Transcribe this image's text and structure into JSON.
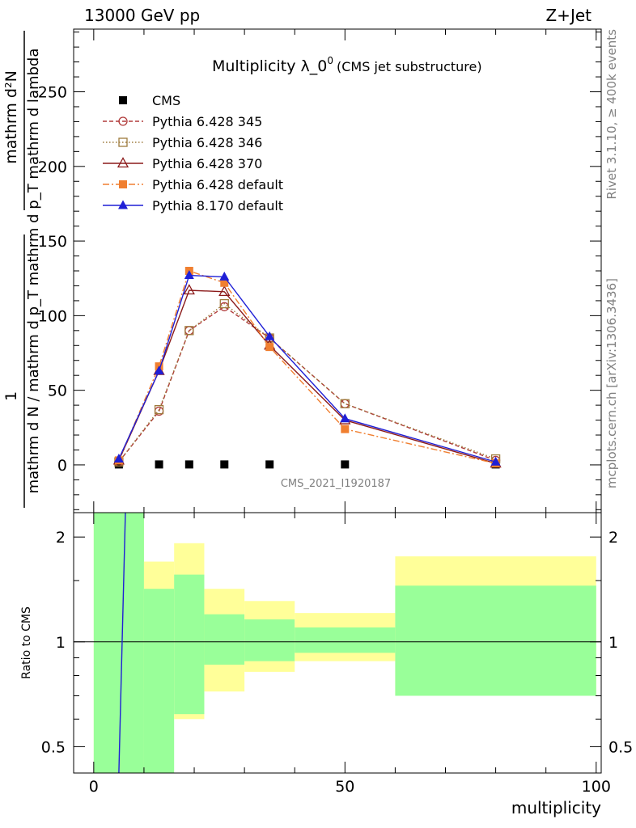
{
  "header": {
    "left": "13000 GeV pp",
    "right": "Z+Jet"
  },
  "side_labels": {
    "rivet": "Rivet 3.1.10, ≥ 400k events",
    "mcplots": "mcplots.cern.ch [arXiv:1306.3436]"
  },
  "chart_data": [
    {
      "type": "line",
      "title": "Multiplicity λ_0⁰",
      "title_main": "Multiplicity λ_0",
      "title_sup": "0",
      "subtitle": "(CMS jet substructure)",
      "analysis_label": "CMS_2021_I1920187",
      "xlabel": "multiplicity",
      "ylabel_numerator": "mathrm d²N",
      "ylabel_main": "mathrm d N / mathrm d p_T mathrm d p_T mathrm d lambda",
      "ylabel_one": "1",
      "xlim": [
        -4,
        101
      ],
      "ylim": [
        -32,
        292
      ],
      "yticks": [
        0,
        50,
        100,
        150,
        200,
        250
      ],
      "xticks": [
        0,
        50,
        100
      ],
      "legend_position": "top-left",
      "series": [
        {
          "name": "CMS",
          "color": "#000000",
          "marker": "square-filled",
          "line": "none",
          "x": [
            5,
            13,
            19,
            26,
            35,
            50,
            80
          ],
          "y": [
            0.3,
            0.3,
            0.3,
            0.3,
            0.3,
            0.3,
            0.3
          ]
        },
        {
          "name": "Pythia 6.428 345",
          "color": "#b03a3a",
          "marker": "circle-open",
          "line": "dashed",
          "x": [
            5,
            13,
            19,
            26,
            35,
            50,
            80
          ],
          "y": [
            2,
            36,
            90,
            106,
            85,
            41,
            3
          ]
        },
        {
          "name": "Pythia 6.428 346",
          "color": "#9e7b3d",
          "marker": "square-open",
          "line": "dotted",
          "x": [
            5,
            13,
            19,
            26,
            35,
            50,
            80
          ],
          "y": [
            2,
            37,
            90,
            108,
            85,
            41,
            4
          ]
        },
        {
          "name": "Pythia 6.428 370",
          "color": "#8b1a1a",
          "marker": "triangle-open",
          "line": "solid",
          "x": [
            5,
            13,
            19,
            26,
            35,
            50,
            80
          ],
          "y": [
            3,
            63,
            117,
            116,
            80,
            30,
            1
          ]
        },
        {
          "name": "Pythia 6.428 default",
          "color": "#f07f30",
          "marker": "square-filled",
          "line": "dashdot",
          "x": [
            5,
            13,
            19,
            26,
            35,
            50,
            80
          ],
          "y": [
            3,
            66,
            130,
            122,
            79,
            24,
            1
          ]
        },
        {
          "name": "Pythia 8.170 default",
          "color": "#1f1fd6",
          "marker": "triangle-filled",
          "line": "solid",
          "x": [
            5,
            13,
            19,
            26,
            35,
            50,
            80
          ],
          "y": [
            4,
            63,
            127,
            126,
            86,
            31,
            2
          ]
        }
      ]
    },
    {
      "type": "line",
      "title": "",
      "ylabel": "Ratio to CMS",
      "xlabel": "multiplicity",
      "xlim": [
        -4,
        101
      ],
      "ylim": [
        0.42,
        2.35
      ],
      "yscale": "log",
      "yticks": [
        0.5,
        1,
        2
      ],
      "ytick_labels": [
        "0.5",
        "1",
        "2"
      ],
      "xticks": [
        0,
        50,
        100
      ],
      "xtick_labels": [
        "0",
        "50",
        "100"
      ],
      "uncertainty_bands": {
        "bin_edges": [
          0,
          10,
          16,
          22,
          30,
          40,
          60,
          100
        ],
        "inner_color": "#99ff99",
        "outer_color": "#ffff99",
        "inner_low": [
          0.42,
          0.42,
          0.62,
          0.86,
          0.88,
          0.93,
          0.7
        ],
        "inner_high": [
          2.35,
          1.42,
          1.56,
          1.2,
          1.16,
          1.1,
          1.45
        ],
        "outer_low": [
          0.42,
          0.73,
          0.6,
          0.72,
          0.82,
          0.88,
          0.7
        ],
        "outer_high": [
          2.35,
          1.7,
          1.92,
          1.42,
          1.31,
          1.21,
          1.76
        ]
      },
      "reference_line": 1,
      "series": [
        {
          "name": "Pythia 8.170 default ratio",
          "color": "#1f1fd6",
          "x": [
            5,
            6.3
          ],
          "y": [
            0.42,
            2.35
          ]
        }
      ]
    }
  ]
}
